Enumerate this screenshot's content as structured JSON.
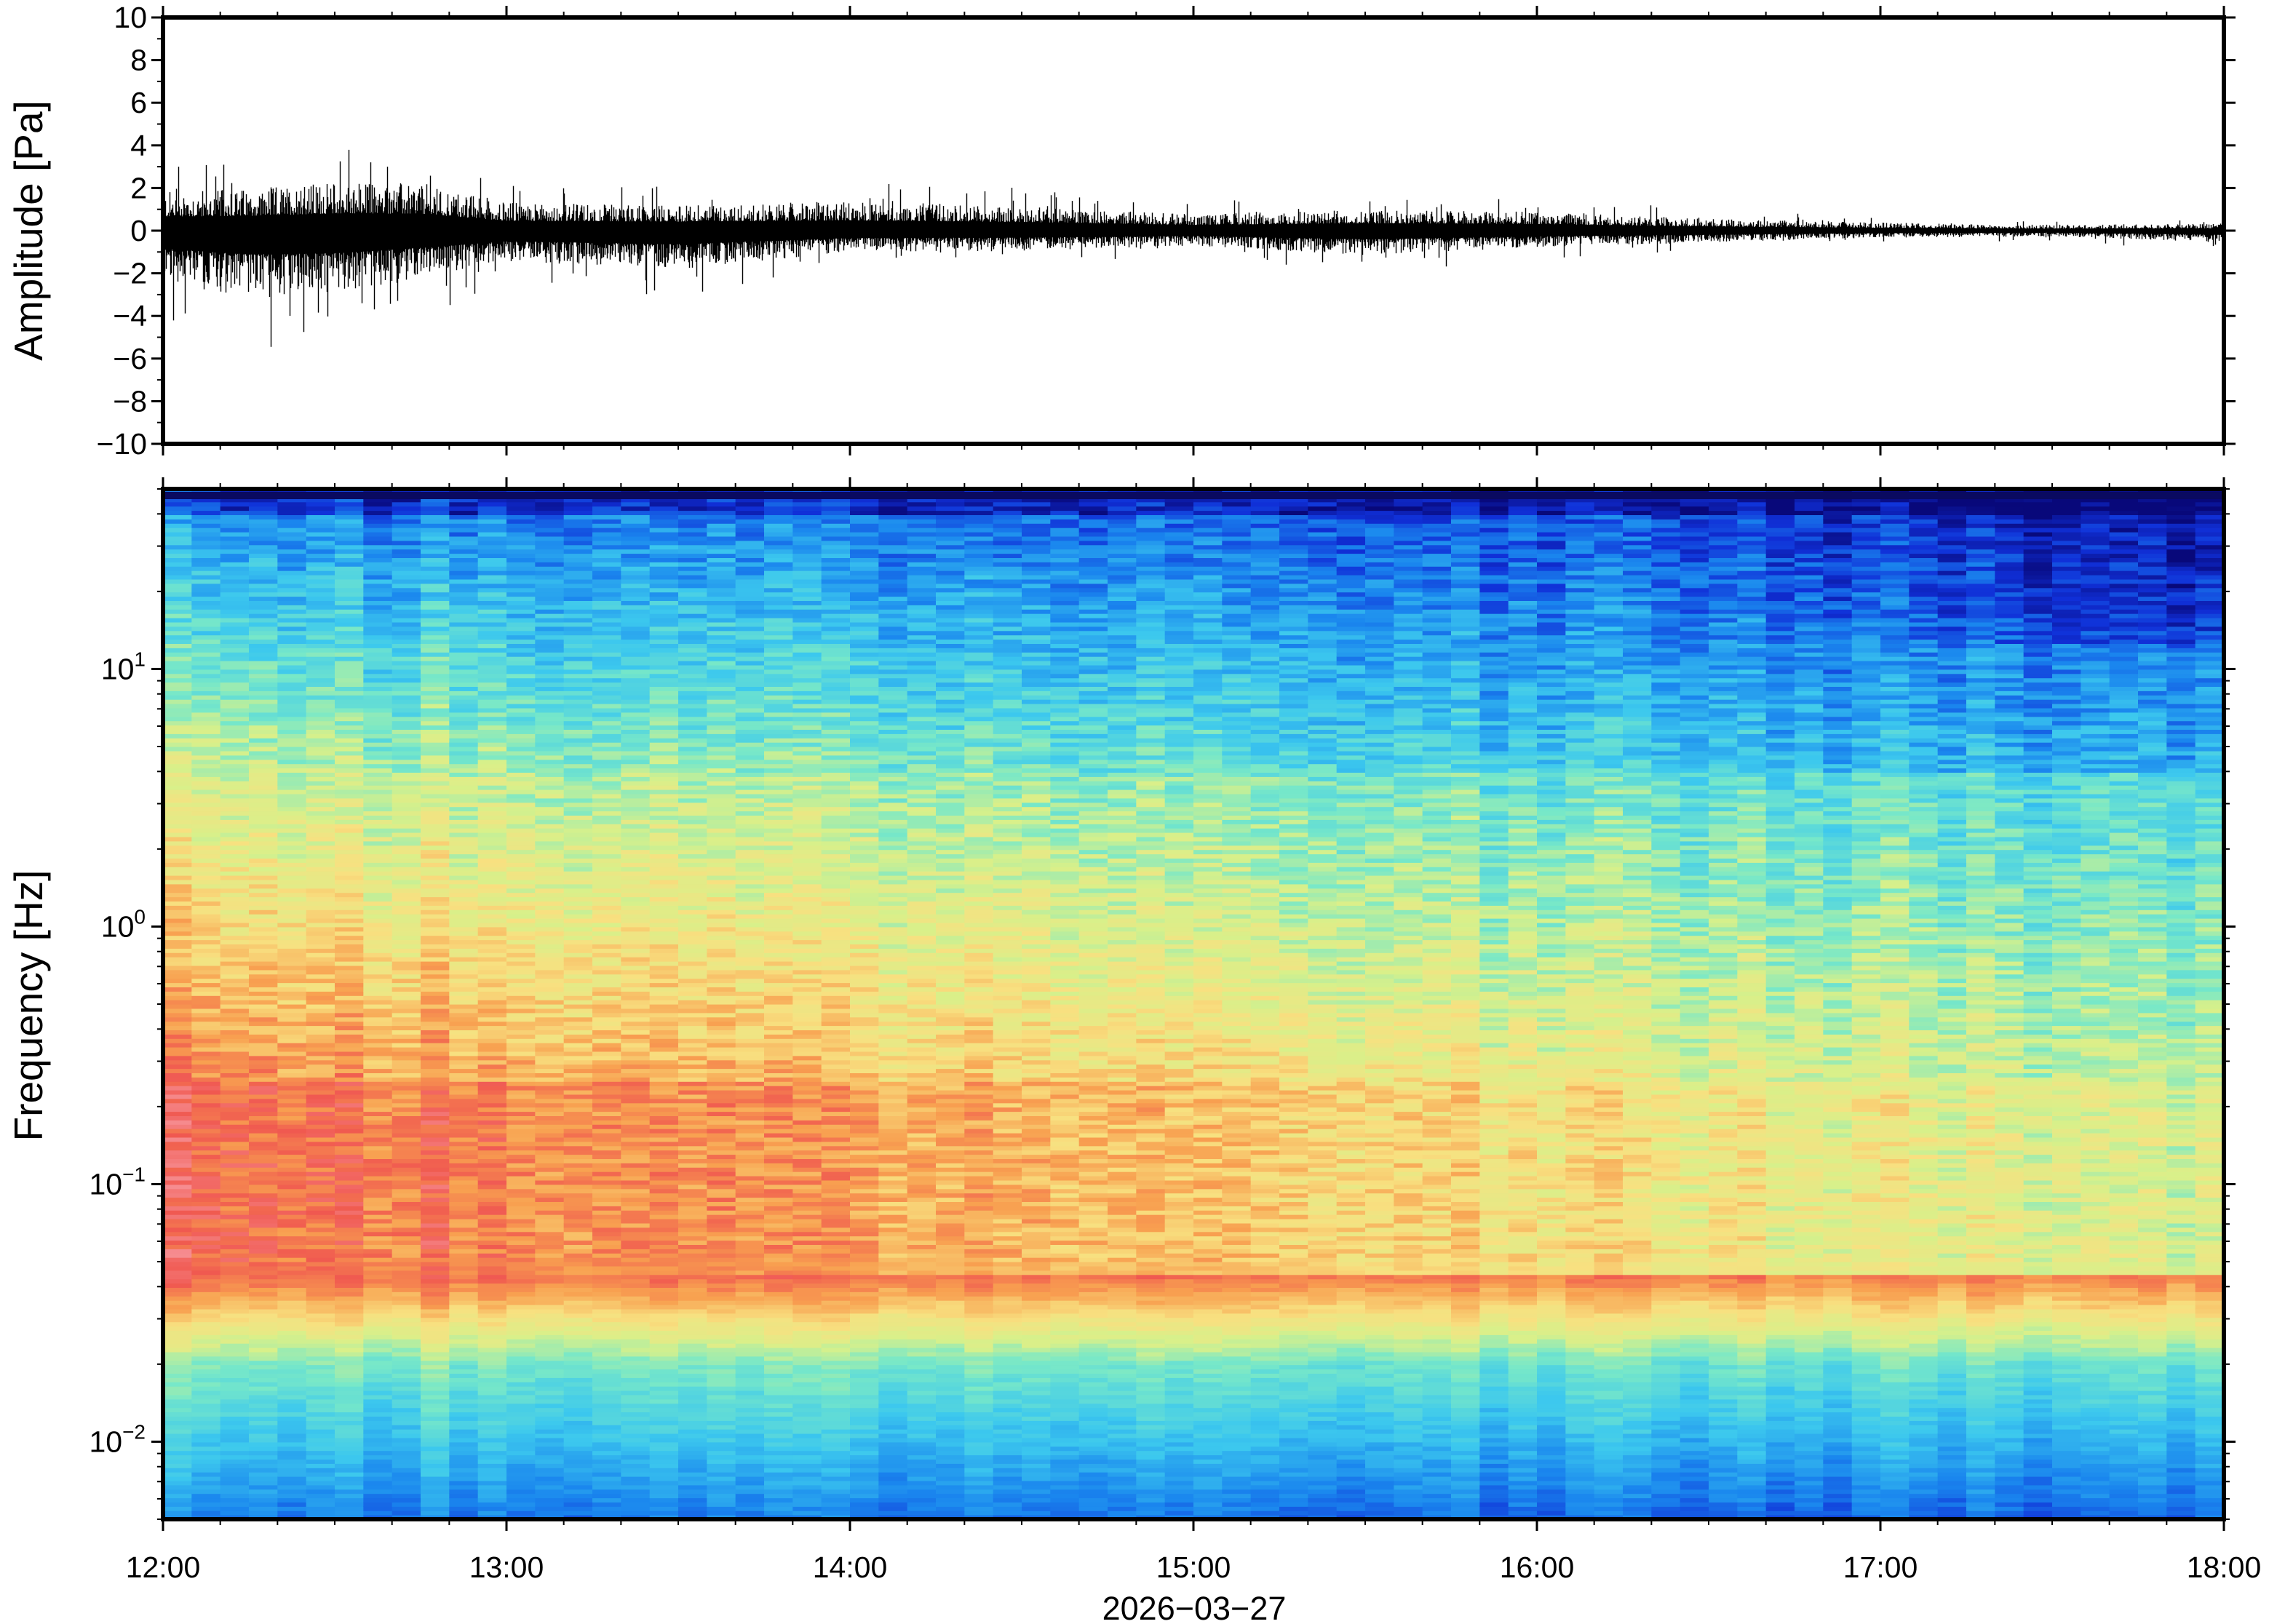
{
  "chart_data": [
    {
      "type": "line",
      "title": "",
      "ylabel": "Amplitude [Pa]",
      "xlabel": "",
      "xlim": [
        "12:00",
        "18:00"
      ],
      "ylim": [
        -10,
        10
      ],
      "yticks": [
        10,
        8,
        6,
        4,
        2,
        0,
        -2,
        -4,
        -6,
        -8,
        -10
      ],
      "ytick_labels": [
        "10",
        "8",
        "6",
        "4",
        "2",
        "0",
        "−2",
        "−4",
        "−6",
        "−8",
        "−10"
      ],
      "grid": false,
      "series": [
        {
          "description_envelope": "peak amplitude envelope by hour",
          "x": [
            "12:00",
            "12:15",
            "12:30",
            "12:45",
            "13:00",
            "13:30",
            "14:00",
            "14:30",
            "15:00",
            "15:30",
            "16:00",
            "16:30",
            "17:00",
            "17:30",
            "18:00"
          ],
          "max": [
            3.4,
            3.6,
            4.2,
            4.1,
            2.4,
            2.2,
            2.5,
            2.1,
            1.4,
            1.8,
            1.6,
            1.0,
            0.7,
            0.5,
            0.6
          ],
          "min": [
            -4.4,
            -5.8,
            -5.5,
            -4.2,
            -2.6,
            -3.3,
            -1.8,
            -1.7,
            -1.3,
            -2.1,
            -1.4,
            -1.0,
            -0.6,
            -0.5,
            -1.0
          ],
          "color": "#000000"
        }
      ]
    },
    {
      "type": "heatmap",
      "title": "",
      "ylabel": "Frequency [Hz]",
      "xlabel": "2026−03−27",
      "x_ticks": [
        "12:00",
        "13:00",
        "14:00",
        "15:00",
        "16:00",
        "17:00",
        "18:00"
      ],
      "y_scale": "log",
      "ylim": [
        0.005,
        50
      ],
      "y_ticks": [
        {
          "value": 10,
          "base": "10",
          "exp": "1"
        },
        {
          "value": 1,
          "base": "10",
          "exp": "0"
        },
        {
          "value": 0.1,
          "base": "10",
          "exp": "−1"
        },
        {
          "value": 0.01,
          "base": "10",
          "exp": "−2"
        }
      ],
      "colormap": "jet-like (dark blue → cyan → yellow → red → pink)",
      "colormap_stops": [
        "#08087a",
        "#1030d8",
        "#1a86ee",
        "#3cc8ee",
        "#78e8c8",
        "#d8f08a",
        "#f8e080",
        "#f8a050",
        "#f05850",
        "#f8a0a8"
      ],
      "grid": false,
      "time_columns": 72
    }
  ]
}
